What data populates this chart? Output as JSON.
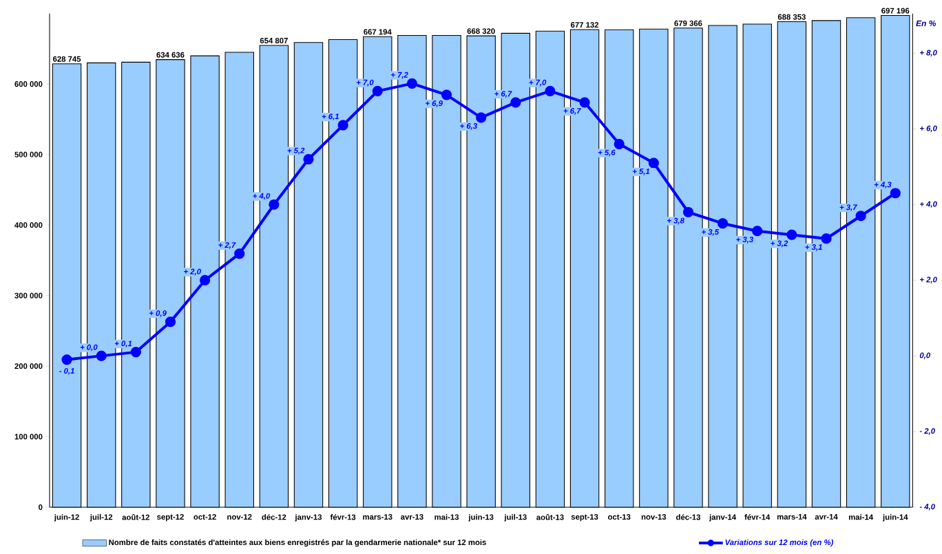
{
  "chart_data": {
    "type": "bar",
    "categories": [
      "juin-12",
      "juil-12",
      "août-12",
      "sept-12",
      "oct-12",
      "nov-12",
      "déc-12",
      "janv-13",
      "févr-13",
      "mars-13",
      "avr-13",
      "mai-13",
      "juin-13",
      "juil-13",
      "août-13",
      "sept-13",
      "oct-13",
      "nov-13",
      "déc-13",
      "janv-14",
      "févr-14",
      "mars-14",
      "avr-14",
      "mai-14",
      "juin-14"
    ],
    "series": [
      {
        "name": "Nombre de faits constatés d'atteintes aux biens enregistrés par la gendarmerie nationale* sur 12 mois",
        "color": "#99ccff",
        "values": [
          628745,
          630000,
          631000,
          634636,
          640000,
          645000,
          654807,
          659000,
          663000,
          667194,
          669000,
          669000,
          668320,
          672000,
          675000,
          677132,
          677000,
          678000,
          679366,
          683000,
          685000,
          688353,
          690000,
          694000,
          697196
        ],
        "value_labels": [
          "628 745",
          null,
          null,
          "634 636",
          null,
          null,
          "654 807",
          null,
          null,
          "667 194",
          null,
          null,
          "668 320",
          null,
          null,
          "677 132",
          null,
          null,
          "679 366",
          null,
          null,
          "688 353",
          null,
          null,
          "697 196"
        ]
      },
      {
        "name": "Variations sur 12 mois (en %)",
        "type": "line",
        "axis": "y2",
        "color": "#0000ff",
        "marker": "circle",
        "values": [
          -0.1,
          0.0,
          0.1,
          0.9,
          2.0,
          2.7,
          4.0,
          5.2,
          6.1,
          7.0,
          7.2,
          6.9,
          6.3,
          6.7,
          7.0,
          6.7,
          5.6,
          5.1,
          3.8,
          3.5,
          3.3,
          3.2,
          3.1,
          3.7,
          4.3
        ],
        "value_labels": [
          "- 0,1",
          "+ 0,0",
          "+ 0,1",
          "+ 0,9",
          "+ 2,0",
          "+ 2,7",
          "+ 4,0",
          "+ 5,2",
          "+ 6,1",
          "+ 7,0",
          "+ 7,2",
          "+ 6,9",
          "+ 6,3",
          "+ 6,7",
          "+ 7,0",
          "+ 6,7",
          "+ 5,6",
          "+ 5,1",
          "+ 3,8",
          "+ 3,5",
          "+ 3,3",
          "+ 3,2",
          "+ 3,1",
          "+ 3,7",
          "+ 4,3"
        ]
      }
    ],
    "ylim": [
      0,
      700000
    ],
    "yticks": [
      {
        "value": 0,
        "label": "0"
      },
      {
        "value": 100000,
        "label": "100 000"
      },
      {
        "value": 200000,
        "label": "200 000"
      },
      {
        "value": 300000,
        "label": "300 000"
      },
      {
        "value": 400000,
        "label": "400 000"
      },
      {
        "value": 500000,
        "label": "500 000"
      },
      {
        "value": 600000,
        "label": "600 000"
      }
    ],
    "y2lim": [
      -4,
      9.05
    ],
    "y2ticks": [
      {
        "value": -4,
        "label": "- 4,0"
      },
      {
        "value": -2,
        "label": "- 2,0"
      },
      {
        "value": 0,
        "label": "0,0"
      },
      {
        "value": 2,
        "label": "+ 2,0"
      },
      {
        "value": 4,
        "label": "+ 4,0"
      },
      {
        "value": 6,
        "label": "+ 6,0"
      },
      {
        "value": 8,
        "label": "+ 8,0"
      }
    ],
    "y2label": "En %",
    "legend": "bottom",
    "grid": false
  }
}
